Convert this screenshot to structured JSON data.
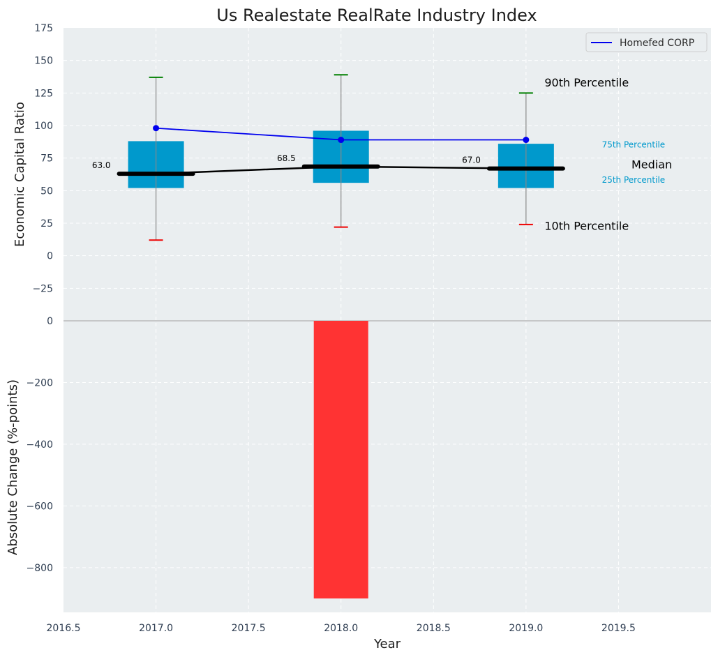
{
  "chart_data": [
    {
      "type": "box",
      "panel": "top",
      "title": "Us Realestate RealRate Industry Index",
      "ylabel": "Economic Capital Ratio",
      "xlim": [
        2016.5,
        2020.0
      ],
      "ylim": [
        -50,
        175
      ],
      "yticks": [
        175,
        150,
        125,
        100,
        75,
        50,
        25,
        0,
        -25
      ],
      "ytick_labels": [
        "175",
        "150",
        "125",
        "100",
        "75",
        "50",
        "25",
        "0",
        "−25"
      ],
      "grid": true,
      "legend_position": "top-right",
      "boxes": [
        {
          "x": 2017,
          "p10": 12,
          "p25": 52,
          "median": 63.0,
          "p75": 88,
          "p90": 137,
          "median_label": "63.0"
        },
        {
          "x": 2018,
          "p10": 22,
          "p25": 56,
          "median": 68.5,
          "p75": 96,
          "p90": 139,
          "median_label": "68.5"
        },
        {
          "x": 2019,
          "p10": 24,
          "p25": 52,
          "median": 67.0,
          "p75": 86,
          "p90": 125,
          "median_label": "67.0"
        }
      ],
      "series": [
        {
          "name": "Homefed CORP",
          "x": [
            2017,
            2018,
            2019
          ],
          "values": [
            98,
            89,
            89
          ],
          "color": "#0000ee"
        }
      ],
      "annotations": [
        {
          "text": "90th Percentile",
          "x": 2019.1,
          "y": 130
        },
        {
          "text": "75th Percentile",
          "x": 2019.41,
          "y": 83
        },
        {
          "text": "Median",
          "x": 2019.57,
          "y": 67
        },
        {
          "text": "25th Percentile",
          "x": 2019.41,
          "y": 56
        },
        {
          "text": "10th Percentile",
          "x": 2019.1,
          "y": 20
        }
      ],
      "colors": {
        "box": "#0099cc",
        "median": "#000000",
        "p90_cap": "#008000",
        "p10_cap": "#ee0000",
        "whisker": "#888888",
        "label_blue": "#0099cc"
      }
    },
    {
      "type": "bar",
      "panel": "bottom",
      "xlabel": "Year",
      "ylabel": "Absolute Change (%-points)",
      "xlim": [
        2016.5,
        2020.0
      ],
      "ylim": [
        -945,
        0
      ],
      "yticks": [
        0,
        -200,
        -400,
        -600,
        -800
      ],
      "ytick_labels": [
        "0",
        "−200",
        "−400",
        "−600",
        "−800"
      ],
      "xticks": [
        2016.5,
        2017.0,
        2017.5,
        2018.0,
        2018.5,
        2019.0,
        2019.5
      ],
      "xtick_labels": [
        "2016.5",
        "2017.0",
        "2017.5",
        "2018.0",
        "2018.5",
        "2019.0",
        "2019.5"
      ],
      "grid": true,
      "bars": [
        {
          "x": 2018,
          "value": -900,
          "color": "#ff3333"
        }
      ]
    }
  ]
}
